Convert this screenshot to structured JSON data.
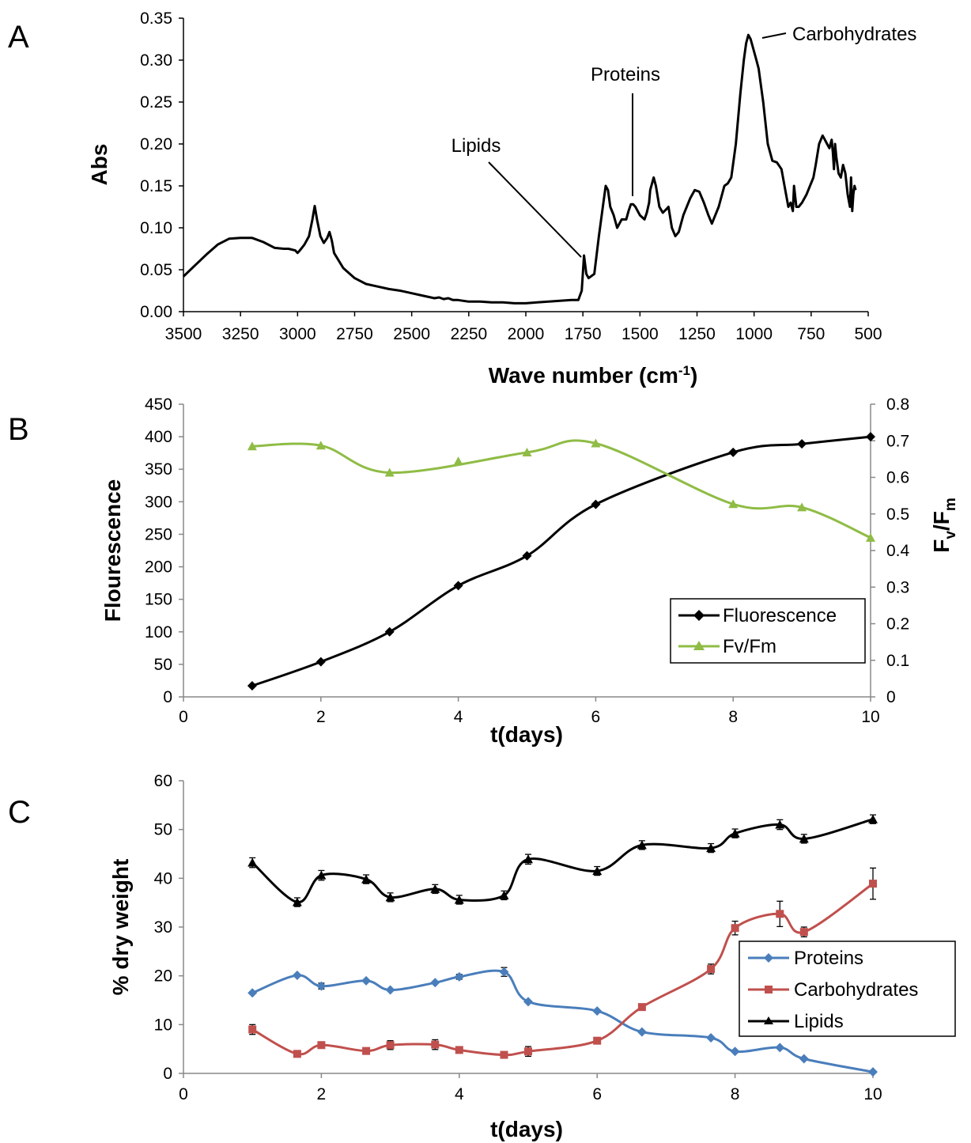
{
  "chart_data": [
    {
      "panel": "A",
      "type": "line",
      "xlabel": "Wave number (cm",
      "xlabel_sup": "-1",
      "xlabel_end": ")",
      "ylabel": "Abs",
      "xlim": [
        3500,
        500
      ],
      "ylim": [
        0,
        0.35
      ],
      "x_ticks": [
        "3500",
        "3250",
        "3000",
        "2750",
        "2500",
        "2250",
        "2000",
        "1750",
        "1500",
        "1250",
        "1000",
        "750",
        "500"
      ],
      "y_ticks": [
        "0.00",
        "0.05",
        "0.10",
        "0.15",
        "0.20",
        "0.25",
        "0.30",
        "0.35"
      ],
      "annotations": [
        {
          "text": "Lipids",
          "x": 1740,
          "y": 0.065
        },
        {
          "text": "Proteins",
          "x": 1540,
          "y": 0.13
        },
        {
          "text": "Carbohydrates",
          "x": 1025,
          "y": 0.33
        }
      ],
      "series": [
        {
          "color": "#000000",
          "x": [
            3500,
            3450,
            3400,
            3350,
            3300,
            3250,
            3200,
            3150,
            3100,
            3060,
            3040,
            3010,
            3000,
            2990,
            2970,
            2950,
            2935,
            2925,
            2915,
            2900,
            2885,
            2870,
            2860,
            2850,
            2840,
            2800,
            2750,
            2700,
            2650,
            2600,
            2550,
            2500,
            2450,
            2400,
            2380,
            2360,
            2340,
            2320,
            2300,
            2250,
            2200,
            2150,
            2100,
            2050,
            2000,
            1950,
            1900,
            1850,
            1800,
            1770,
            1755,
            1745,
            1735,
            1725,
            1700,
            1680,
            1660,
            1650,
            1640,
            1630,
            1615,
            1600,
            1580,
            1560,
            1550,
            1540,
            1530,
            1520,
            1500,
            1480,
            1470,
            1460,
            1455,
            1440,
            1430,
            1415,
            1400,
            1385,
            1375,
            1360,
            1345,
            1330,
            1310,
            1280,
            1260,
            1240,
            1220,
            1200,
            1185,
            1170,
            1155,
            1130,
            1115,
            1100,
            1080,
            1060,
            1045,
            1035,
            1025,
            1015,
            1000,
            990,
            980,
            960,
            940,
            920,
            900,
            880,
            860,
            850,
            840,
            830,
            825,
            815,
            805,
            790,
            770,
            740,
            730,
            715,
            700,
            690,
            680,
            670,
            660,
            655,
            650,
            645,
            640,
            630,
            620,
            610,
            600,
            590,
            580,
            575,
            570,
            565,
            560,
            555
          ],
          "y": [
            0.042,
            0.055,
            0.068,
            0.08,
            0.087,
            0.088,
            0.088,
            0.083,
            0.076,
            0.075,
            0.075,
            0.073,
            0.07,
            0.073,
            0.08,
            0.09,
            0.11,
            0.126,
            0.11,
            0.09,
            0.082,
            0.088,
            0.095,
            0.085,
            0.07,
            0.052,
            0.04,
            0.033,
            0.03,
            0.027,
            0.025,
            0.022,
            0.019,
            0.016,
            0.017,
            0.015,
            0.016,
            0.014,
            0.014,
            0.012,
            0.012,
            0.011,
            0.011,
            0.01,
            0.01,
            0.011,
            0.012,
            0.013,
            0.014,
            0.014,
            0.025,
            0.067,
            0.045,
            0.04,
            0.045,
            0.09,
            0.13,
            0.15,
            0.145,
            0.125,
            0.115,
            0.1,
            0.11,
            0.11,
            0.12,
            0.128,
            0.128,
            0.125,
            0.115,
            0.11,
            0.118,
            0.13,
            0.145,
            0.16,
            0.15,
            0.125,
            0.118,
            0.122,
            0.125,
            0.1,
            0.09,
            0.095,
            0.115,
            0.135,
            0.145,
            0.143,
            0.13,
            0.115,
            0.105,
            0.115,
            0.125,
            0.15,
            0.153,
            0.16,
            0.2,
            0.26,
            0.3,
            0.32,
            0.33,
            0.325,
            0.31,
            0.3,
            0.29,
            0.25,
            0.2,
            0.18,
            0.178,
            0.17,
            0.14,
            0.125,
            0.13,
            0.12,
            0.15,
            0.125,
            0.125,
            0.13,
            0.14,
            0.16,
            0.175,
            0.2,
            0.21,
            0.205,
            0.2,
            0.195,
            0.205,
            0.19,
            0.17,
            0.2,
            0.185,
            0.165,
            0.16,
            0.175,
            0.165,
            0.14,
            0.125,
            0.16,
            0.12,
            0.14,
            0.15,
            0.145
          ]
        }
      ]
    },
    {
      "panel": "B",
      "type": "line",
      "xlabel": "t(days)",
      "ylabel": "Flourescence",
      "y2label_main": "F",
      "y2label_sub1": "v",
      "y2label_mid": "/F",
      "y2label_sub2": "m",
      "xlim": [
        0,
        10
      ],
      "ylim": [
        0,
        450
      ],
      "y2lim": [
        0,
        0.8
      ],
      "x_ticks": [
        "0",
        "2",
        "4",
        "6",
        "8",
        "10"
      ],
      "y_ticks": [
        "0",
        "50",
        "100",
        "150",
        "200",
        "250",
        "300",
        "350",
        "400",
        "450"
      ],
      "y2_ticks": [
        "0",
        "0.1",
        "0.2",
        "0.3",
        "0.4",
        "0.5",
        "0.6",
        "0.7",
        "0.8"
      ],
      "legend": "bottom-right",
      "series": [
        {
          "name": "Fluorescence",
          "color": "#000000",
          "marker": "diamond",
          "axis": "left",
          "x": [
            1,
            2,
            3,
            4,
            5,
            6,
            8,
            9,
            10
          ],
          "y": [
            17,
            54,
            100,
            171,
            217,
            296,
            376,
            389,
            400
          ]
        },
        {
          "name": "Fv/Fm",
          "color": "#8fbc45",
          "marker": "triangle",
          "axis": "right",
          "x": [
            1,
            2,
            3,
            5,
            6,
            8,
            9,
            10
          ],
          "y": [
            0.685,
            0.687,
            0.613,
            0.668,
            0.693,
            0.527,
            0.518,
            0.435
          ],
          "extra_points": [
            {
              "x": 4,
              "y": 0.644
            }
          ]
        }
      ]
    },
    {
      "panel": "C",
      "type": "line",
      "xlabel": "t(days)",
      "ylabel": "% dry weight",
      "xlim": [
        0,
        10
      ],
      "ylim": [
        0,
        60
      ],
      "x_ticks": [
        "0",
        "2",
        "4",
        "6",
        "8",
        "10"
      ],
      "y_ticks": [
        "0",
        "10",
        "20",
        "30",
        "40",
        "50",
        "60"
      ],
      "legend": "right",
      "series": [
        {
          "name": "Proteins",
          "color": "#4a7ebb",
          "marker": "diamond",
          "x": [
            1,
            1.65,
            2,
            2.65,
            3,
            3.65,
            4,
            4.65,
            5,
            6,
            6.65,
            7.65,
            8,
            8.65,
            9,
            10
          ],
          "y": [
            16.5,
            20.1,
            17.9,
            19.0,
            17.1,
            18.6,
            19.8,
            20.8,
            14.7,
            12.8,
            8.5,
            7.3,
            4.5,
            5.3,
            3.0,
            0.3
          ],
          "err": [
            0,
            0,
            0.6,
            0,
            0,
            0,
            0.5,
            0.9,
            0,
            0,
            0,
            0,
            0,
            0,
            0,
            0
          ]
        },
        {
          "name": "Carbohydrates",
          "color": "#c0504d",
          "marker": "square",
          "x": [
            1,
            1.65,
            2,
            2.65,
            3,
            3.65,
            4,
            4.65,
            5,
            6,
            6.65,
            7.65,
            8,
            8.65,
            9,
            10
          ],
          "y": [
            9.0,
            4.0,
            5.8,
            4.6,
            5.8,
            5.9,
            4.8,
            3.8,
            4.5,
            6.7,
            13.6,
            21.4,
            29.8,
            32.7,
            29.0,
            38.9
          ],
          "err": [
            1.0,
            0.4,
            0.4,
            0.6,
            0.9,
            1.0,
            0.6,
            0.4,
            1.0,
            0.4,
            0.3,
            1.0,
            1.4,
            2.6,
            1.0,
            3.2
          ]
        },
        {
          "name": "Lipids",
          "color": "#000000",
          "marker": "triangle",
          "x": [
            1,
            1.65,
            2,
            2.65,
            3,
            3.65,
            4,
            4.65,
            5,
            6,
            6.65,
            7.65,
            8,
            8.65,
            9,
            10
          ],
          "y": [
            43.2,
            35.1,
            40.6,
            39.8,
            36.1,
            37.8,
            35.6,
            36.5,
            43.9,
            41.5,
            46.8,
            46.2,
            49.2,
            51.0,
            48.1,
            52.1
          ],
          "err": [
            1.0,
            0.9,
            1.0,
            0.9,
            0.9,
            0.9,
            0.9,
            0.9,
            1.0,
            0.9,
            0.9,
            0.9,
            0.9,
            1.0,
            0.9,
            0.9
          ]
        }
      ]
    }
  ]
}
